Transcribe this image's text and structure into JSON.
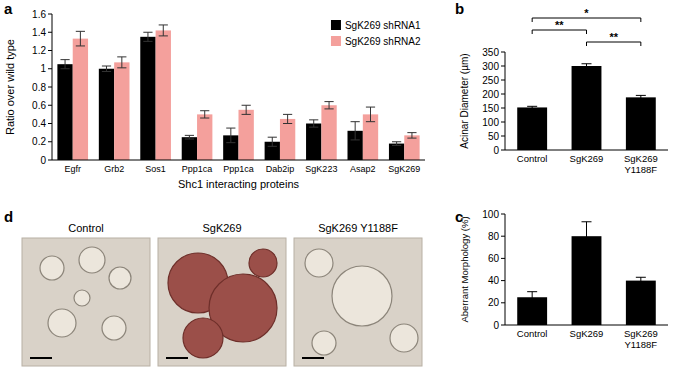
{
  "chart_data": [
    {
      "panel_label": "a",
      "type": "bar",
      "categories": [
        "Egfr",
        "Grb2",
        "Sos1",
        "Ppp1ca",
        "Ppp1ca",
        "Dab2ip",
        "SgK223",
        "Asap2",
        "SgK269"
      ],
      "series": [
        {
          "name": "SgK269 shRNA1",
          "color": "#000000",
          "values": [
            1.05,
            1.0,
            1.35,
            0.25,
            0.27,
            0.2,
            0.4,
            0.32,
            0.18
          ],
          "errors": [
            0.05,
            0.03,
            0.05,
            0.02,
            0.08,
            0.05,
            0.04,
            0.1,
            0.02
          ]
        },
        {
          "name": "SgK269 shRNA2",
          "color": "#f4a09c",
          "values": [
            1.33,
            1.07,
            1.42,
            0.5,
            0.55,
            0.45,
            0.6,
            0.5,
            0.27
          ],
          "errors": [
            0.08,
            0.06,
            0.06,
            0.04,
            0.05,
            0.05,
            0.04,
            0.08,
            0.03
          ]
        }
      ],
      "ylim": [
        0,
        1.6
      ],
      "yticks": [
        0,
        0.2,
        0.4,
        0.6,
        0.8,
        1,
        1.2,
        1.4,
        1.6
      ],
      "y_label": "Ratio over wild type",
      "x_label": "Shc1 interacting proteins",
      "legend": "upper right"
    },
    {
      "panel_label": "b",
      "type": "bar",
      "categories": [
        "Control",
        "SgK269",
        "SgK269 Y1188F"
      ],
      "values": [
        152,
        300,
        188
      ],
      "errors": [
        4,
        8,
        7
      ],
      "color": "#000000",
      "ylim": [
        0,
        350
      ],
      "yticks": [
        0,
        50,
        100,
        150,
        200,
        250,
        300,
        350
      ],
      "y_label": "Acinar Diameter (µm)",
      "annotations": [
        {
          "from": 0,
          "to": 2,
          "label": "*"
        },
        {
          "from": 0,
          "to": 1,
          "label": "**"
        },
        {
          "from": 1,
          "to": 2,
          "label": "**"
        }
      ]
    },
    {
      "panel_label": "c",
      "type": "bar",
      "categories": [
        "Control",
        "SgK269",
        "SgK269 Y1188F"
      ],
      "values": [
        25,
        80,
        40
      ],
      "errors": [
        5,
        13,
        3
      ],
      "color": "#000000",
      "ylim": [
        0,
        100
      ],
      "yticks": [
        0,
        20,
        40,
        60,
        80,
        100
      ],
      "y_label": "Aberrant Morphology (%)"
    }
  ],
  "images": {
    "panel_label": "d",
    "labels": [
      "Control",
      "SgK269",
      "SgK269 Y1188F"
    ]
  }
}
